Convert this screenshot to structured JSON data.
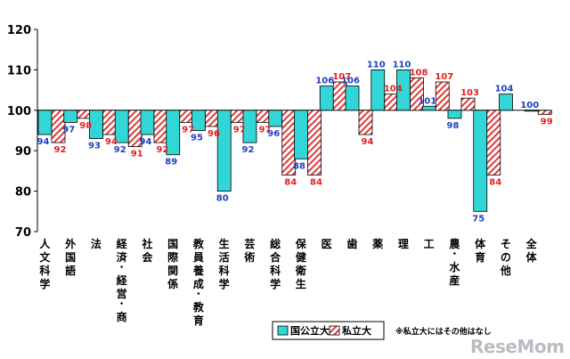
{
  "chart_data": {
    "type": "bar",
    "title": "",
    "xlabel": "",
    "ylabel": "",
    "ylim": [
      70,
      120
    ],
    "yticks": [
      70,
      80,
      90,
      100,
      110,
      120
    ],
    "baseline": 100,
    "grid": false,
    "legend_position": "bottom-right",
    "categories": [
      "人文科学",
      "外国語",
      "法",
      "経済・経営・商",
      "社会",
      "国際関係",
      "教員養成・教育",
      "生活科学",
      "芸術",
      "総合科学",
      "保健衛生",
      "医",
      "歯",
      "薬",
      "理",
      "工",
      "農・水産",
      "体育",
      "その他",
      "全体"
    ],
    "series": [
      {
        "name": "国公立大",
        "values": [
          94,
          97,
          93,
          92,
          94,
          89,
          95,
          80,
          92,
          96,
          88,
          106,
          106,
          110,
          110,
          101,
          98,
          75,
          104,
          100
        ]
      },
      {
        "name": "私立大",
        "values": [
          92,
          98,
          94,
          91,
          92,
          97,
          96,
          97,
          97,
          84,
          84,
          107,
          94,
          104,
          108,
          107,
          103,
          84,
          null,
          99
        ]
      }
    ]
  },
  "colors": {
    "public": "#33d6d6",
    "private_stripe": "#e03a3a",
    "public_label": "#1f3fbf",
    "private_label": "#e02020"
  },
  "note": "※私立大にはその他はなし",
  "watermark": "ReseMom"
}
